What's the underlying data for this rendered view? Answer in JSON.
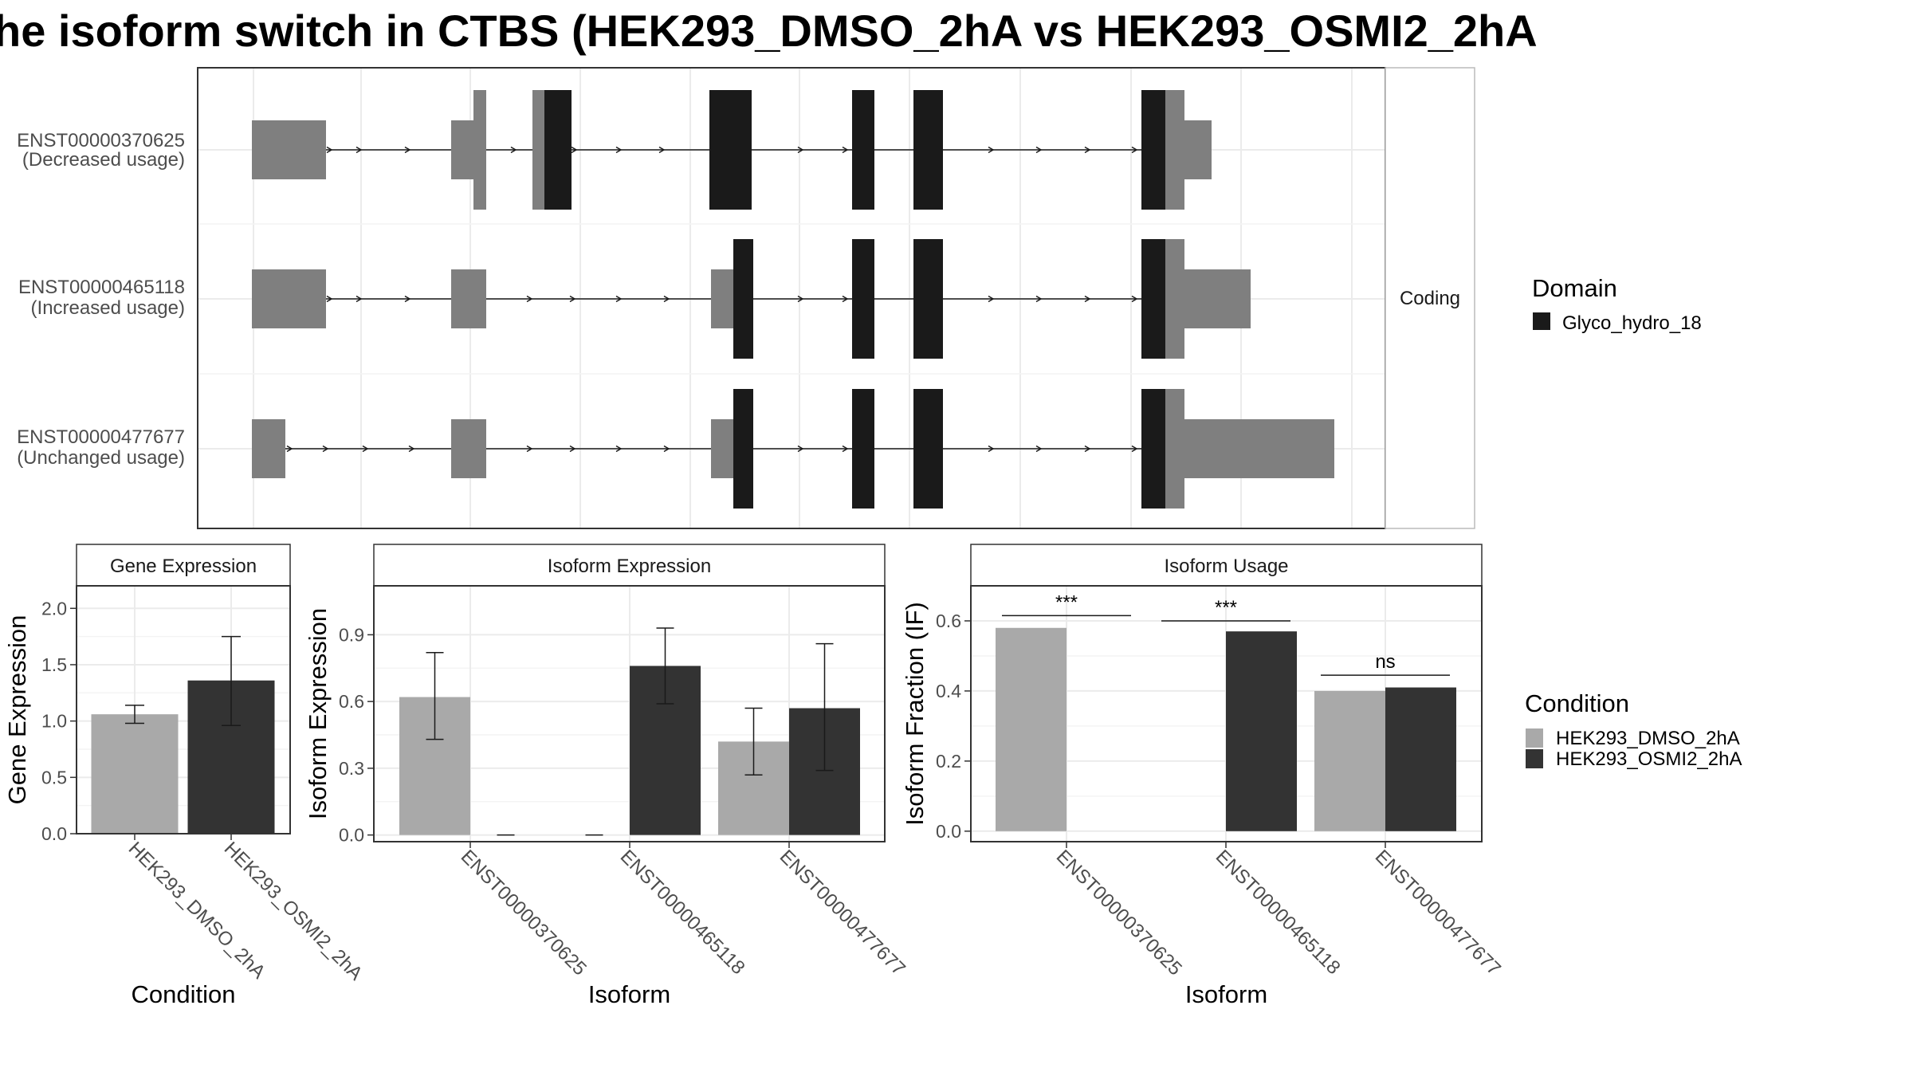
{
  "title": "he isoform switch in CTBS (HEK293_DMSO_2hA vs HEK293_OSMI2_2hA",
  "colors": {
    "cond1": "#a9a9a9",
    "cond2": "#333333",
    "domain": "#1a1a1a",
    "exon": "#7f7f7f",
    "strip": "#ffffff",
    "grid": "#ebebeb"
  },
  "structure": {
    "facet_label": "Coding",
    "transcripts": [
      {
        "id": "ENST00000370625",
        "note": "(Decreased usage)"
      },
      {
        "id": "ENST00000465118",
        "note": "(Increased usage)"
      },
      {
        "id": "ENST00000477677",
        "note": "(Unchanged usage)"
      }
    ]
  },
  "legend_domain": {
    "title": "Domain",
    "items": [
      "Glyco_hydro_18"
    ]
  },
  "legend_condition": {
    "title": "Condition",
    "items": [
      "HEK293_DMSO_2hA",
      "HEK293_OSMI2_2hA"
    ]
  },
  "chart_data": [
    {
      "type": "bar",
      "title": "Gene Expression",
      "xlabel": "Condition",
      "ylabel": "Gene Expression",
      "ylim": [
        0,
        2.2
      ],
      "yticks": [
        0.0,
        0.5,
        1.0,
        1.5,
        2.0
      ],
      "yticklabels": [
        "0.0",
        "0.5",
        "1.0",
        "1.5",
        "2.0"
      ],
      "categories": [
        "HEK293_DMSO_2hA",
        "HEK293_OSMI2_2hA"
      ],
      "values": [
        1.06,
        1.36
      ],
      "err_low": [
        0.98,
        0.96
      ],
      "err_high": [
        1.14,
        1.75
      ]
    },
    {
      "type": "bar",
      "title": "Isoform Expression",
      "xlabel": "Isoform",
      "ylabel": "Isoform Expression",
      "ylim": [
        -0.03,
        1.12
      ],
      "yticks": [
        0.0,
        0.3,
        0.6,
        0.9
      ],
      "yticklabels": [
        "0.0",
        "0.3",
        "0.6",
        "0.9"
      ],
      "categories": [
        "ENST00000370625",
        "ENST00000465118",
        "ENST00000477677"
      ],
      "series": [
        {
          "name": "HEK293_DMSO_2hA",
          "values": [
            0.62,
            0.0,
            0.42
          ],
          "err_low": [
            0.43,
            0.0,
            0.27
          ],
          "err_high": [
            0.82,
            0.0,
            0.57
          ]
        },
        {
          "name": "HEK293_OSMI2_2hA",
          "values": [
            0.0,
            0.76,
            0.57
          ],
          "err_low": [
            0.0,
            0.59,
            0.29
          ],
          "err_high": [
            0.0,
            0.93,
            0.86
          ]
        }
      ]
    },
    {
      "type": "bar",
      "title": "Isoform Usage",
      "xlabel": "Isoform",
      "ylabel": "Isoform Fraction (IF)",
      "ylim": [
        -0.03,
        0.7
      ],
      "yticks": [
        0.0,
        0.2,
        0.4,
        0.6
      ],
      "yticklabels": [
        "0.0",
        "0.2",
        "0.4",
        "0.6"
      ],
      "categories": [
        "ENST00000370625",
        "ENST00000465118",
        "ENST00000477677"
      ],
      "series": [
        {
          "name": "HEK293_DMSO_2hA",
          "values": [
            0.58,
            0.0,
            0.4
          ]
        },
        {
          "name": "HEK293_OSMI2_2hA",
          "values": [
            0.0,
            0.57,
            0.41
          ]
        }
      ],
      "significance": [
        {
          "label": "***",
          "y": 0.615
        },
        {
          "label": "***",
          "y": 0.6
        },
        {
          "label": "ns",
          "y": 0.445
        }
      ]
    }
  ]
}
